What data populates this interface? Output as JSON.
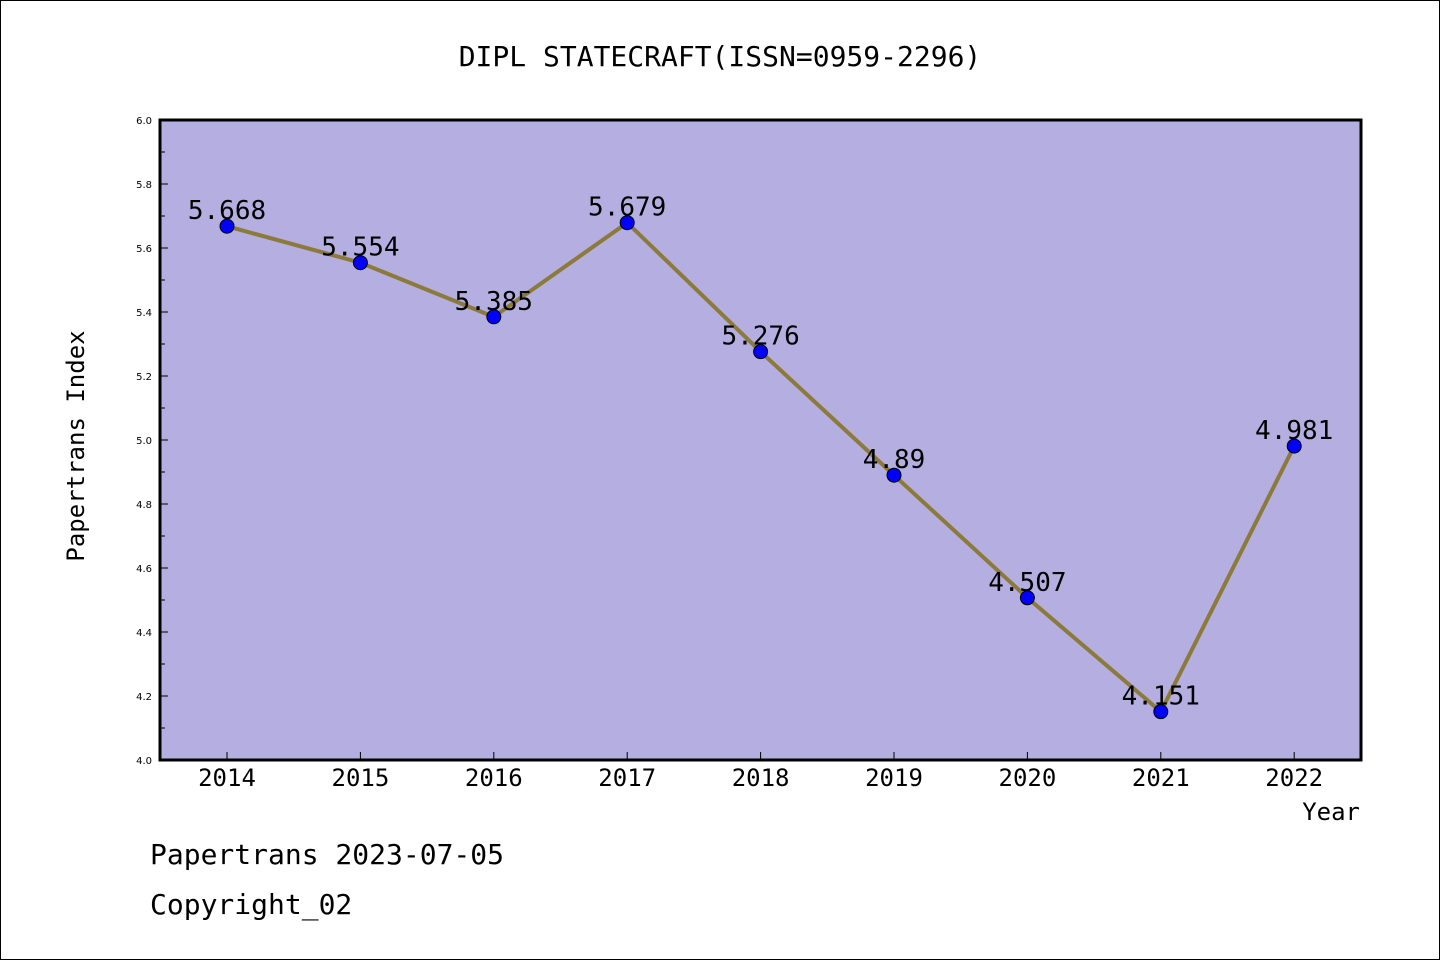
{
  "chart_data": {
    "type": "line",
    "title": "DIPL STATECRAFT(ISSN=0959-2296)",
    "xlabel": "Year",
    "ylabel": "Papertrans Index",
    "categories": [
      "2014",
      "2015",
      "2016",
      "2017",
      "2018",
      "2019",
      "2020",
      "2021",
      "2022"
    ],
    "series": [
      {
        "values": [
          5.668,
          5.554,
          5.385,
          5.679,
          5.276,
          4.89,
          4.507,
          4.151,
          4.981
        ],
        "labels": [
          "5.668",
          "5.554",
          "5.385",
          "5.679",
          "5.276",
          "4.89",
          "4.507",
          "4.151",
          "4.981"
        ],
        "line_color": "#8b7a3a",
        "marker_color": "#0000ff"
      }
    ],
    "ylim": [
      4.0,
      6.0
    ],
    "yticks": [
      "4.0",
      "4.2",
      "4.4",
      "4.6",
      "4.8",
      "5.0",
      "5.2",
      "5.4",
      "5.6",
      "5.8",
      "6.0"
    ],
    "plot_background": "#b4aee1",
    "grid": false
  },
  "footer": {
    "line1": "Papertrans 2023-07-05",
    "line2": "Copyright_02"
  }
}
